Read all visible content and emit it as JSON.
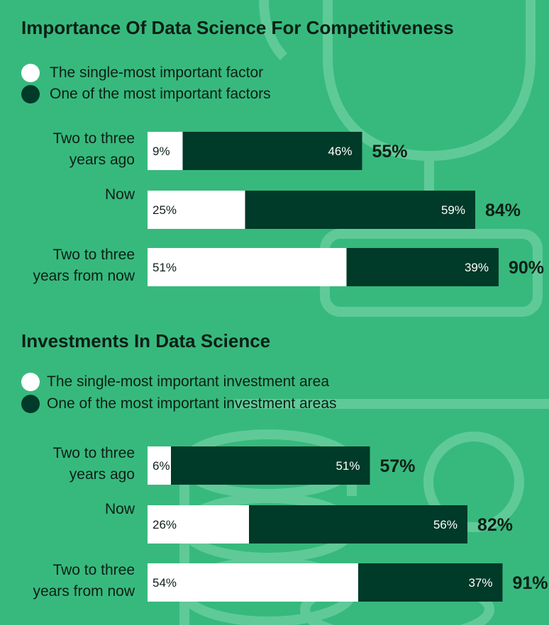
{
  "colors": {
    "background": "#37b97d",
    "light_segment": "#ffffff",
    "dark_segment": "#003a28",
    "text": "#0d1f17",
    "decoration": "#6dd0a1"
  },
  "sections": [
    {
      "title": "Importance Of Data Science For Competitiveness",
      "legend": [
        {
          "label": "The single-most important factor",
          "color": "#ffffff"
        },
        {
          "label": "One of the most important factors",
          "color": "#003a28"
        }
      ]
    },
    {
      "title": "Investments In Data Science",
      "legend": [
        {
          "label": "The single-most important investment area",
          "color": "#ffffff"
        },
        {
          "label": "One of the most important investment areas",
          "color": "#003a28"
        }
      ]
    }
  ],
  "chart_data": [
    {
      "type": "bar",
      "orientation": "horizontal",
      "stacked": true,
      "title": "Importance Of Data Science For Competitiveness",
      "categories": [
        [
          "Two to three",
          "years ago"
        ],
        [
          "Now"
        ],
        [
          "Two to three",
          "years from now"
        ]
      ],
      "series": [
        {
          "name": "The single-most important factor",
          "values": [
            9,
            25,
            51
          ],
          "labels": [
            "9%",
            "25%",
            "51%"
          ],
          "color": "#ffffff"
        },
        {
          "name": "One of the most important factors",
          "values": [
            46,
            59,
            39
          ],
          "labels": [
            "46%",
            "59%",
            "39%"
          ],
          "color": "#003a28"
        }
      ],
      "totals": [
        "55%",
        "84%",
        "90%"
      ],
      "xlim": [
        0,
        100
      ],
      "grid": false,
      "legend_position": "top-left"
    },
    {
      "type": "bar",
      "orientation": "horizontal",
      "stacked": true,
      "title": "Investments In Data Science",
      "categories": [
        [
          "Two to three",
          "years ago"
        ],
        [
          "Now"
        ],
        [
          "Two to three",
          "years from now"
        ]
      ],
      "series": [
        {
          "name": "The single-most important investment area",
          "values": [
            6,
            26,
            54
          ],
          "labels": [
            "6%",
            "26%",
            "54%"
          ],
          "color": "#ffffff"
        },
        {
          "name": "One of the most important investment areas",
          "values": [
            51,
            56,
            37
          ],
          "labels": [
            "51%",
            "56%",
            "37%"
          ],
          "color": "#003a28"
        }
      ],
      "totals": [
        "57%",
        "82%",
        "91%"
      ],
      "xlim": [
        0,
        100
      ],
      "grid": false,
      "legend_position": "top-left"
    }
  ]
}
